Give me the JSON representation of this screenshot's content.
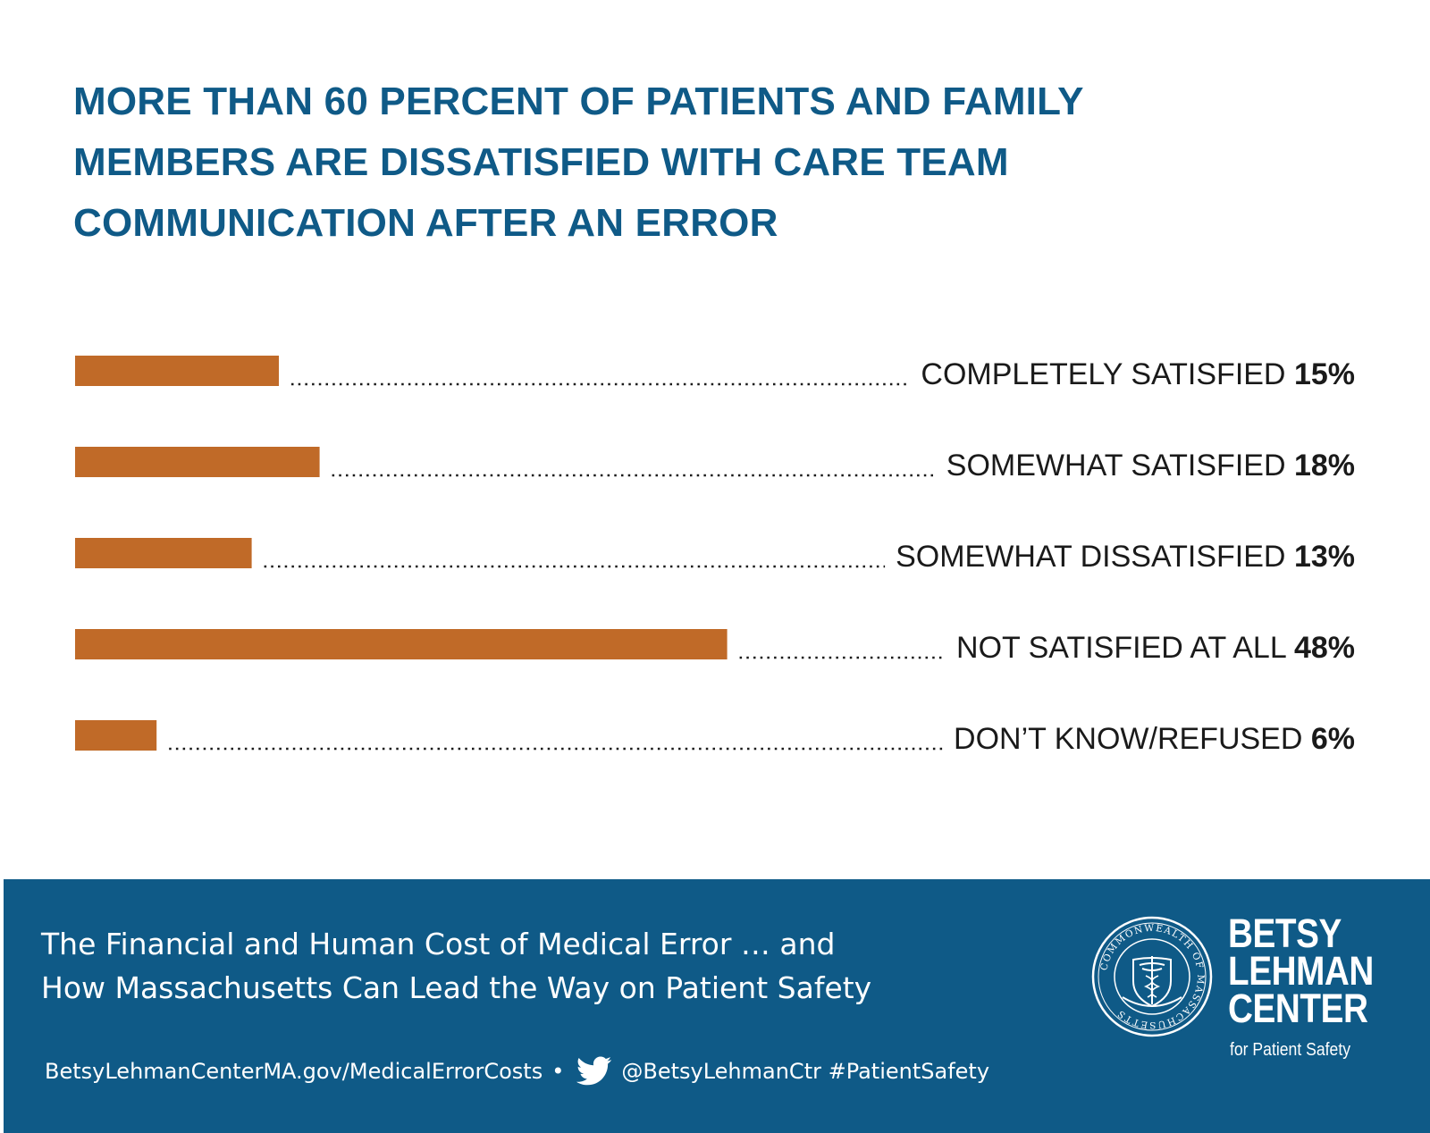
{
  "title": {
    "lines": [
      "MORE THAN 60 PERCENT OF PATIENTS AND FAMILY",
      "MEMBERS ARE DISSATISFIED WITH CARE TEAM",
      "COMMUNICATION AFTER AN ERROR"
    ]
  },
  "colors": {
    "title": "#0f5a87",
    "bar": "#c06a28",
    "footer_bg": "#0f5a87",
    "label": "#1a1a1a"
  },
  "chart_data": {
    "type": "bar",
    "orientation": "horizontal",
    "categories": [
      "COMPLETELY SATISFIED",
      "SOMEWHAT SATISFIED",
      "SOMEWHAT DISSATISFIED",
      "NOT SATISFIED AT ALL",
      "DON’T KNOW/REFUSED"
    ],
    "values": [
      15,
      18,
      13,
      48,
      6
    ],
    "value_labels": [
      "15%",
      "18%",
      "13%",
      "48%",
      "6%"
    ],
    "unit": "%",
    "grid": false,
    "legend": "none"
  },
  "footer": {
    "title_lines": [
      "The Financial and Human Cost of Medical Error … and",
      "How Massachusetts Can Lead the Way on Patient Safety"
    ],
    "url": "BetsyLehmanCenterMA.gov/MedicalErrorCosts",
    "separator": "•",
    "social": "@BetsyLehmanCtr #PatientSafety",
    "twitter_icon": "twitter-bird-icon",
    "logo_lines": [
      "BETSY",
      "LEHMAN",
      "CENTER"
    ],
    "logo_sub": "for Patient Safety",
    "seal_text": "COMMONWEALTH OF MASSACHUSETTS",
    "seal_icon": "caduceus-seal-icon"
  }
}
